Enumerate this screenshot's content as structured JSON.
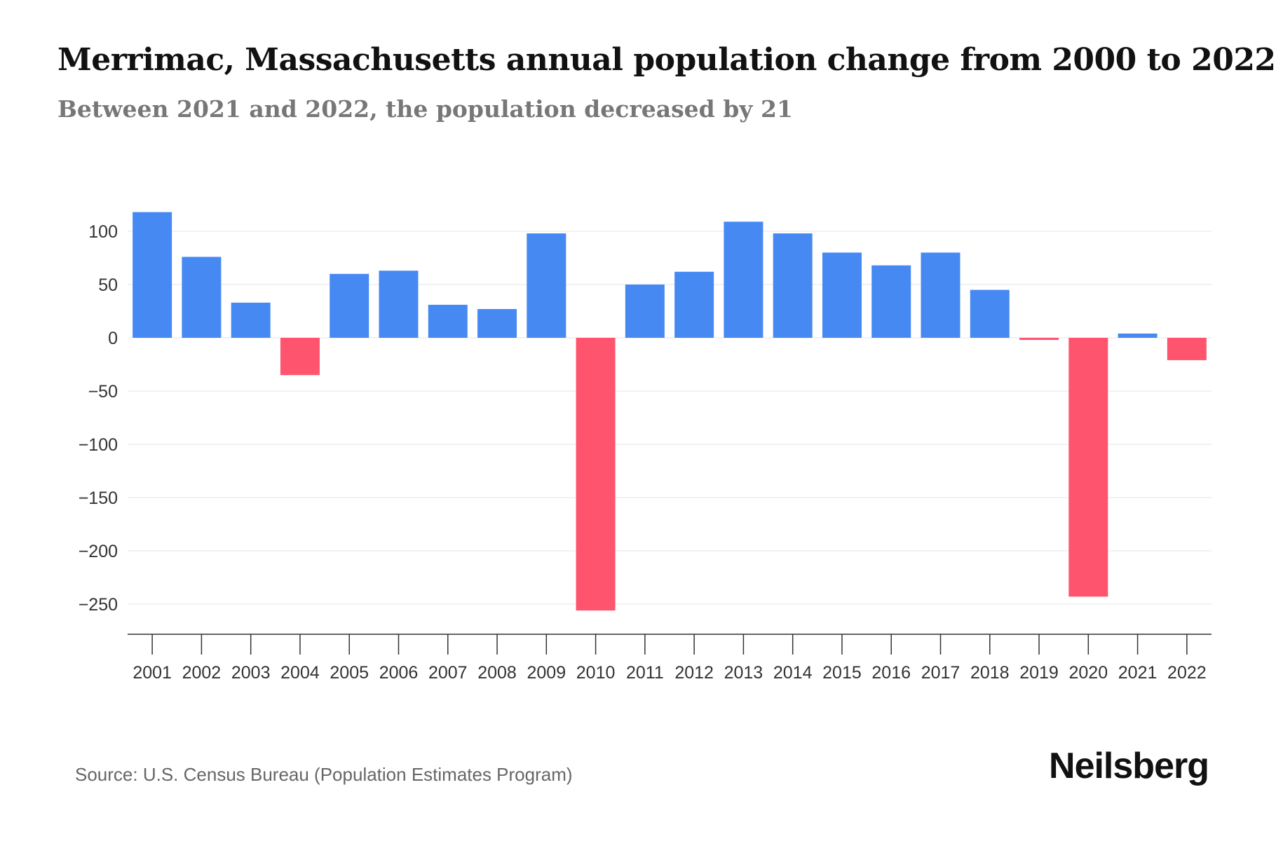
{
  "header": {
    "title": "Merrimac, Massachusetts annual population change from 2000 to 2022",
    "subtitle": "Between 2021 and 2022, the population decreased by 21"
  },
  "footer": {
    "source": "Source: U.S. Census Bureau (Population Estimates Program)",
    "brand": "Neilsberg"
  },
  "colors": {
    "positive": "#4689F3",
    "negative": "#FF546E",
    "grid": "#EEEEEE",
    "axis": "#333333",
    "tick_text": "#333333"
  },
  "chart_data": {
    "type": "bar",
    "title": "Merrimac, Massachusetts annual population change from 2000 to 2022",
    "xlabel": "",
    "ylabel": "",
    "ylim": [
      -275,
      118
    ],
    "yticks": [
      100,
      50,
      0,
      -50,
      -100,
      -150,
      -200,
      -250
    ],
    "ytick_labels": [
      "100",
      "50",
      "0",
      "−50",
      "−100",
      "−150",
      "−200",
      "−250"
    ],
    "grid": true,
    "categories": [
      "2001",
      "2002",
      "2003",
      "2004",
      "2005",
      "2006",
      "2007",
      "2008",
      "2009",
      "2010",
      "2011",
      "2012",
      "2013",
      "2014",
      "2015",
      "2016",
      "2017",
      "2018",
      "2019",
      "2020",
      "2021",
      "2022"
    ],
    "values": [
      118,
      76,
      33,
      -35,
      60,
      63,
      31,
      27,
      98,
      -256,
      50,
      62,
      109,
      98,
      80,
      68,
      80,
      45,
      -2,
      -243,
      4,
      -21
    ]
  }
}
